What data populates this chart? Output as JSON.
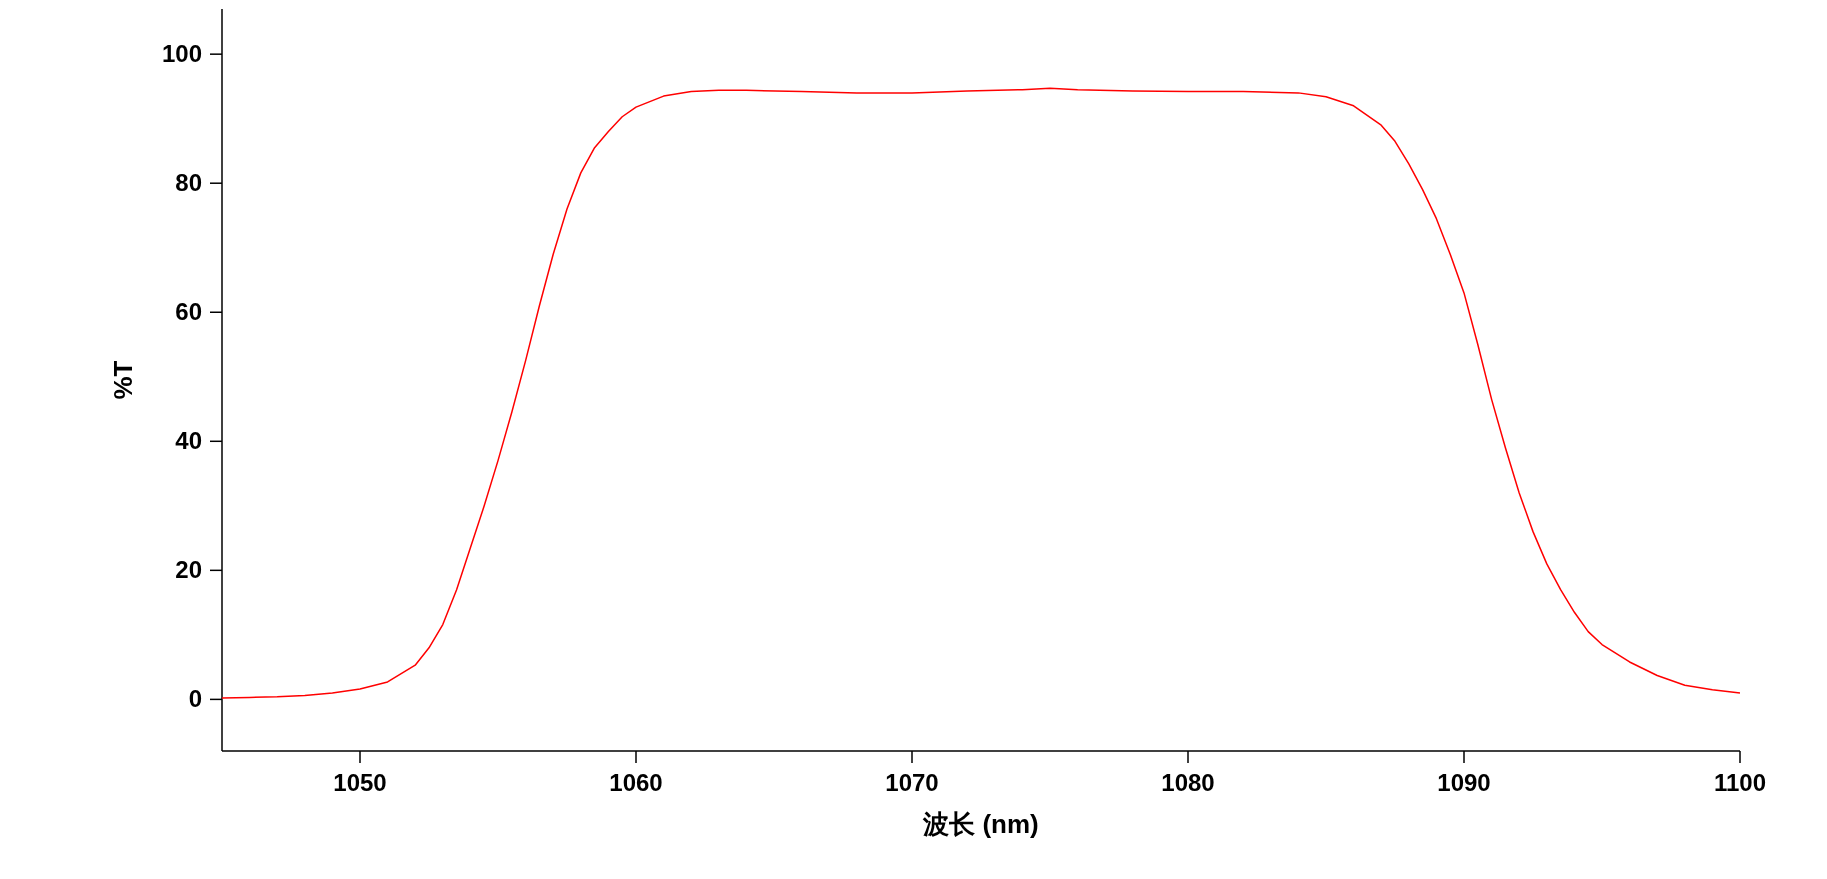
{
  "chart_data": {
    "type": "line",
    "xlabel": "波长 (nm)",
    "ylabel": "%T",
    "x": [
      1045,
      1046,
      1047,
      1048,
      1049,
      1050,
      1051,
      1052,
      1052.5,
      1053,
      1053.5,
      1054,
      1054.5,
      1055,
      1055.5,
      1056,
      1056.5,
      1057,
      1057.5,
      1058,
      1058.5,
      1059,
      1059.5,
      1060,
      1061,
      1062,
      1063,
      1064,
      1066,
      1068,
      1070,
      1072,
      1074,
      1075,
      1076,
      1078,
      1080,
      1082,
      1084,
      1085,
      1086,
      1087,
      1087.5,
      1088,
      1088.5,
      1089,
      1089.5,
      1090,
      1090.5,
      1091,
      1091.5,
      1092,
      1092.5,
      1093,
      1093.5,
      1094,
      1094.5,
      1095,
      1096,
      1097,
      1098,
      1099,
      1100
    ],
    "series": [
      {
        "color": "#ff0000",
        "values": [
          0.2,
          0.3,
          0.4,
          0.6,
          1.0,
          1.6,
          2.7,
          5.3,
          8,
          11.6,
          17,
          23.5,
          30,
          37,
          44.5,
          52.5,
          61,
          69,
          76,
          81.6,
          85.5,
          88,
          90.3,
          91.8,
          93.5,
          94.2,
          94.4,
          94.4,
          94.2,
          94.0,
          94.0,
          94.3,
          94.5,
          94.7,
          94.5,
          94.3,
          94.2,
          94.2,
          94.0,
          93.4,
          92.0,
          89.0,
          86.5,
          83,
          79,
          74.5,
          69,
          63,
          55,
          46.5,
          39,
          32,
          26,
          21,
          17,
          13.5,
          10.5,
          8.5,
          5.8,
          3.7,
          2.2,
          1.5,
          1.0
        ]
      }
    ],
    "xlim": [
      1045,
      1100
    ],
    "ylim": [
      -8,
      107
    ],
    "xticks": [
      1050,
      1060,
      1070,
      1080,
      1090,
      1100
    ],
    "yticks": [
      0,
      20,
      40,
      60,
      80,
      100
    ]
  }
}
